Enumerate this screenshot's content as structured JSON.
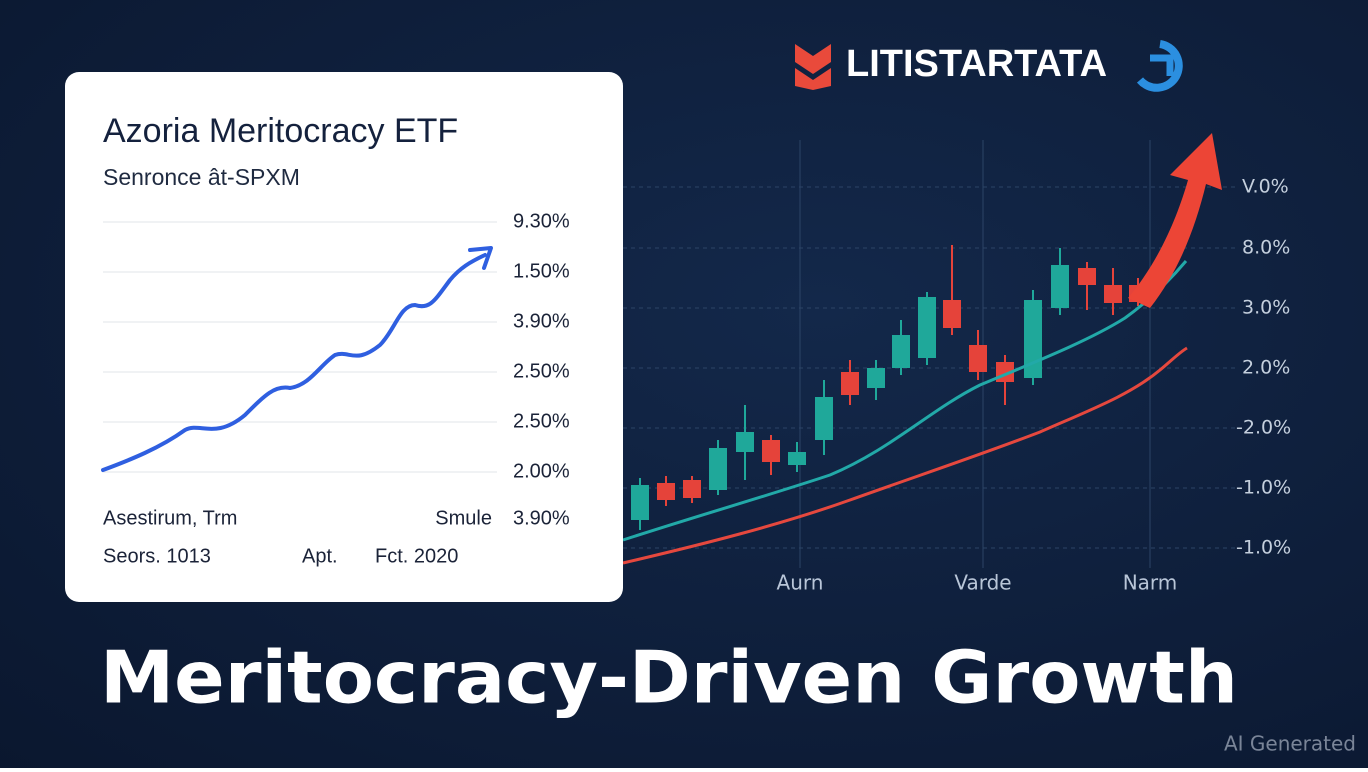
{
  "brand": "LITISTARTATA",
  "card": {
    "title": "Azoria Meritocracy ETF",
    "subtitle": "Senronce ât-SPXM",
    "axis_labels": [
      "9.30%",
      "1.50%",
      "3.90%",
      "2.50%",
      "2.50%",
      "2.00%",
      "3.90%"
    ],
    "footer_row_1": [
      "Asestirum,  Trm",
      "Smule"
    ],
    "footer_row_2": [
      "Seors.  1013",
      "Apt.",
      "Fct.  2020"
    ]
  },
  "market_chart": {
    "axis_labels": [
      "V.0%",
      "8.0%",
      "3.0%",
      "2.0%",
      "-2.0%",
      "-1.0%",
      "-1.0%"
    ],
    "x_labels": [
      "Aurn",
      "Varde",
      "Narm"
    ]
  },
  "headline": "Meritocracy-Driven Growth",
  "watermark": "AI Generated"
}
